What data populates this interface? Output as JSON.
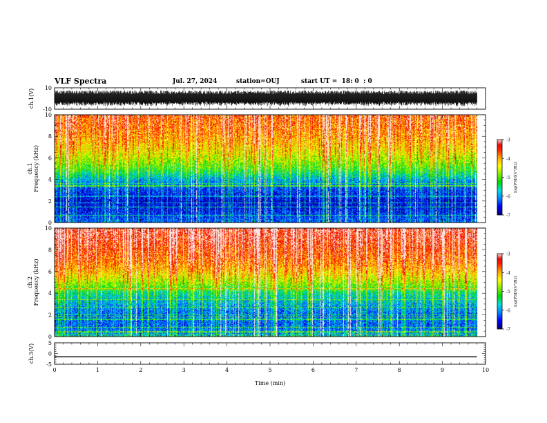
{
  "header": {
    "title": "VLF Spectra",
    "date": "Jul. 27, 2024",
    "station": "station=OUJ",
    "start_ut": "start UT =  18: 0  : 0"
  },
  "colors": {
    "palette": [
      "#00007a",
      "#0000ff",
      "#0087ff",
      "#00e0e0",
      "#00d800",
      "#88ec00",
      "#ffff00",
      "#ffa500",
      "#ff2000",
      "#e00000",
      "#ffd0d0"
    ]
  },
  "chart_data": [
    {
      "type": "line",
      "panel": "ch1-waveform",
      "ylabel": "ch.1(V)",
      "ylim": [
        -10,
        10
      ],
      "yticks": [
        "10",
        "-10"
      ],
      "xlim": [
        0,
        10
      ],
      "note_series": "dense VLF waveform oscillating roughly between -7 and 7 V over 0 to 9.8 min"
    },
    {
      "type": "heatmap",
      "panel": "ch1-spectrogram",
      "ylabel": "ch.1\nFrequency (kHz)",
      "ylim": [
        0,
        10
      ],
      "yticks": [
        "0",
        "2",
        "4",
        "6",
        "8",
        "10"
      ],
      "xlim": [
        0,
        10
      ],
      "data_extent_min": 9.8,
      "colorbar": {
        "label": "log(PSD)(V²/Hz)",
        "range": [
          -7,
          -3
        ],
        "ticks": [
          "-3",
          "-4",
          "-5",
          "-6",
          "-7"
        ]
      },
      "mean_profile": {
        "freq_khz": [
          0,
          1,
          2,
          3,
          4,
          5,
          6,
          7,
          8,
          9,
          10
        ],
        "log_psd": [
          -6.3,
          -6.6,
          -6.8,
          -6.5,
          -6.0,
          -5.2,
          -4.7,
          -4.3,
          -4.0,
          -3.8,
          -3.7
        ]
      }
    },
    {
      "type": "heatmap",
      "panel": "ch2-spectrogram",
      "ylabel": "ch.2\nFrequency (kHz)",
      "ylim": [
        0,
        10
      ],
      "yticks": [
        "0",
        "2",
        "4",
        "6",
        "8",
        "10"
      ],
      "xlim": [
        0,
        10
      ],
      "data_extent_min": 9.8,
      "colorbar": {
        "label": "log(PSD)(V²/Hz)",
        "range": [
          -7,
          -3
        ],
        "ticks": [
          "-3",
          "-4",
          "-5",
          "-6",
          "-7"
        ]
      },
      "mean_profile": {
        "freq_khz": [
          0,
          1,
          2,
          3,
          4,
          5,
          6,
          7,
          8,
          9,
          10
        ],
        "log_psd": [
          -6.0,
          -6.3,
          -6.3,
          -6.0,
          -5.6,
          -4.8,
          -4.2,
          -3.8,
          -3.6,
          -3.4,
          -3.3
        ]
      }
    },
    {
      "type": "line",
      "panel": "ch3-trace",
      "ylabel": "ch.3(V)",
      "ylim": [
        -5,
        5
      ],
      "yticks": [
        "5",
        "0",
        "-5"
      ],
      "xlim": [
        0,
        10
      ],
      "x": [
        0,
        9.8
      ],
      "y": [
        -1.5,
        -1.5
      ]
    }
  ],
  "xaxis": {
    "label": "Time (min)",
    "ticks": [
      "0",
      "1",
      "2",
      "3",
      "4",
      "5",
      "6",
      "7",
      "8",
      "9",
      "10"
    ]
  }
}
